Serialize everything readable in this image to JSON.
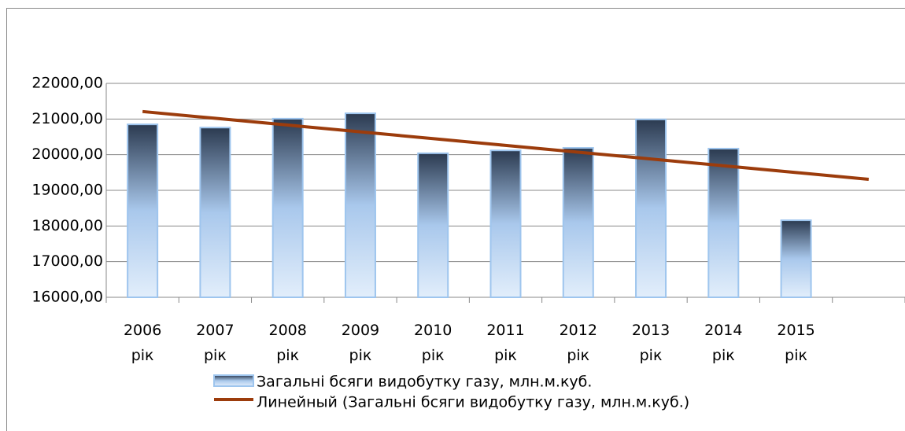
{
  "chart_data": {
    "type": "bar",
    "categories": [
      "2006 рік",
      "2007 рік",
      "2008 рік",
      "2009 рік",
      "2010 рік",
      "2011 рік",
      "2012 рік",
      "2013 рік",
      "2014 рік",
      "2015 рік",
      null
    ],
    "series": [
      {
        "name": "Загальні бсяги видобутку газу, млн.м.куб.",
        "type": "bar",
        "color": "#9ec5ee",
        "values": [
          20850,
          20760,
          21010,
          21160,
          20040,
          20120,
          20190,
          20990,
          20170,
          18160,
          null
        ]
      },
      {
        "name": "Линейный (Загальні бсяги видобутку газу, млн.м.куб.)",
        "type": "line",
        "color": "#9c3c0c",
        "values": [
          21210,
          21020,
          20830,
          20640,
          20450,
          20260,
          20070,
          19880,
          19690,
          19500,
          19310
        ]
      }
    ],
    "ylim": [
      16000,
      22000
    ],
    "yticks": [
      {
        "value": 16000,
        "label": "16000,00"
      },
      {
        "value": 17000,
        "label": "17000,00"
      },
      {
        "value": 18000,
        "label": "18000,00"
      },
      {
        "value": 19000,
        "label": "19000,00"
      },
      {
        "value": 20000,
        "label": "20000,00"
      },
      {
        "value": 21000,
        "label": "21000,00"
      },
      {
        "value": 22000,
        "label": "22000,00"
      }
    ],
    "grid": true,
    "legend": "bottom"
  }
}
